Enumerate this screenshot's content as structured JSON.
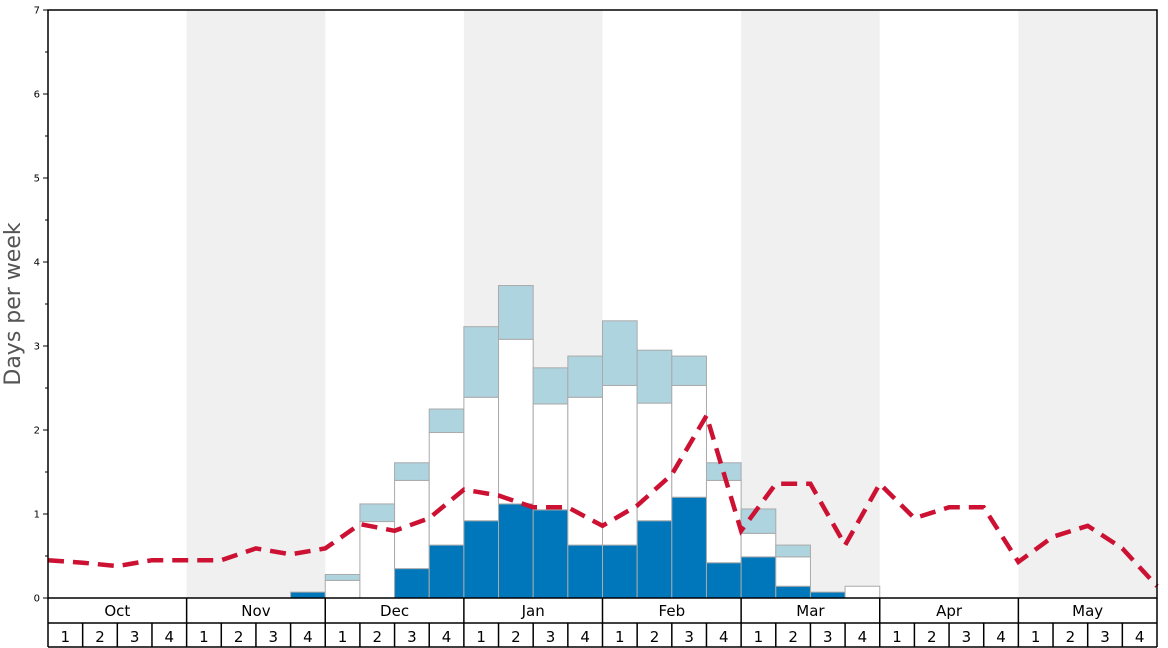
{
  "chart_data": {
    "type": "bar",
    "ylabel": "Days per week",
    "ylim": [
      0,
      7
    ],
    "yticks": [
      0,
      1,
      2,
      3,
      4,
      5,
      6,
      7
    ],
    "months": [
      "Oct",
      "Nov",
      "Dec",
      "Jan",
      "Feb",
      "Mar",
      "Apr",
      "May"
    ],
    "weeks": [
      "1",
      "2",
      "3",
      "4"
    ],
    "stacked": true,
    "series": [
      {
        "color": "#0077bb",
        "values": [
          0,
          0,
          0,
          0,
          0,
          0,
          0,
          0.07,
          0,
          0,
          0.35,
          0.63,
          0.92,
          1.12,
          1.05,
          0.63,
          0.63,
          0.92,
          1.2,
          0.42,
          0.49,
          0.14,
          0.07,
          0,
          0,
          0,
          0,
          0,
          0,
          0,
          0,
          0
        ]
      },
      {
        "color": "#ffffff",
        "values": [
          0,
          0,
          0,
          0,
          0,
          0,
          0,
          0,
          0.21,
          0.91,
          1.05,
          1.34,
          1.47,
          1.96,
          1.26,
          1.76,
          1.9,
          1.4,
          1.33,
          0.98,
          0.28,
          0.35,
          0,
          0.14,
          0,
          0,
          0,
          0,
          0,
          0,
          0,
          0
        ]
      },
      {
        "color": "#aed4e0",
        "values": [
          0,
          0,
          0,
          0,
          0,
          0,
          0,
          0,
          0.07,
          0.21,
          0.21,
          0.28,
          0.84,
          0.64,
          0.43,
          0.49,
          0.77,
          0.63,
          0.35,
          0.21,
          0.29,
          0.14,
          0,
          0,
          0,
          0,
          0,
          0,
          0,
          0,
          0,
          0
        ]
      }
    ],
    "line": {
      "color": "#cc1133",
      "style": "dashed",
      "values": [
        0.45,
        0.42,
        0.38,
        0.45,
        0.45,
        0.45,
        0.59,
        0.52,
        0.59,
        0.88,
        0.8,
        0.95,
        1.29,
        1.22,
        1.08,
        1.08,
        0.86,
        1.1,
        1.47,
        2.17,
        0.8,
        1.36,
        1.36,
        0.63,
        1.36,
        0.95,
        1.08,
        1.08,
        0.43,
        0.73,
        0.86,
        0.59,
        0.14
      ]
    },
    "shaded_months": [
      "Nov",
      "Jan",
      "Mar",
      "May"
    ],
    "grid": false
  }
}
